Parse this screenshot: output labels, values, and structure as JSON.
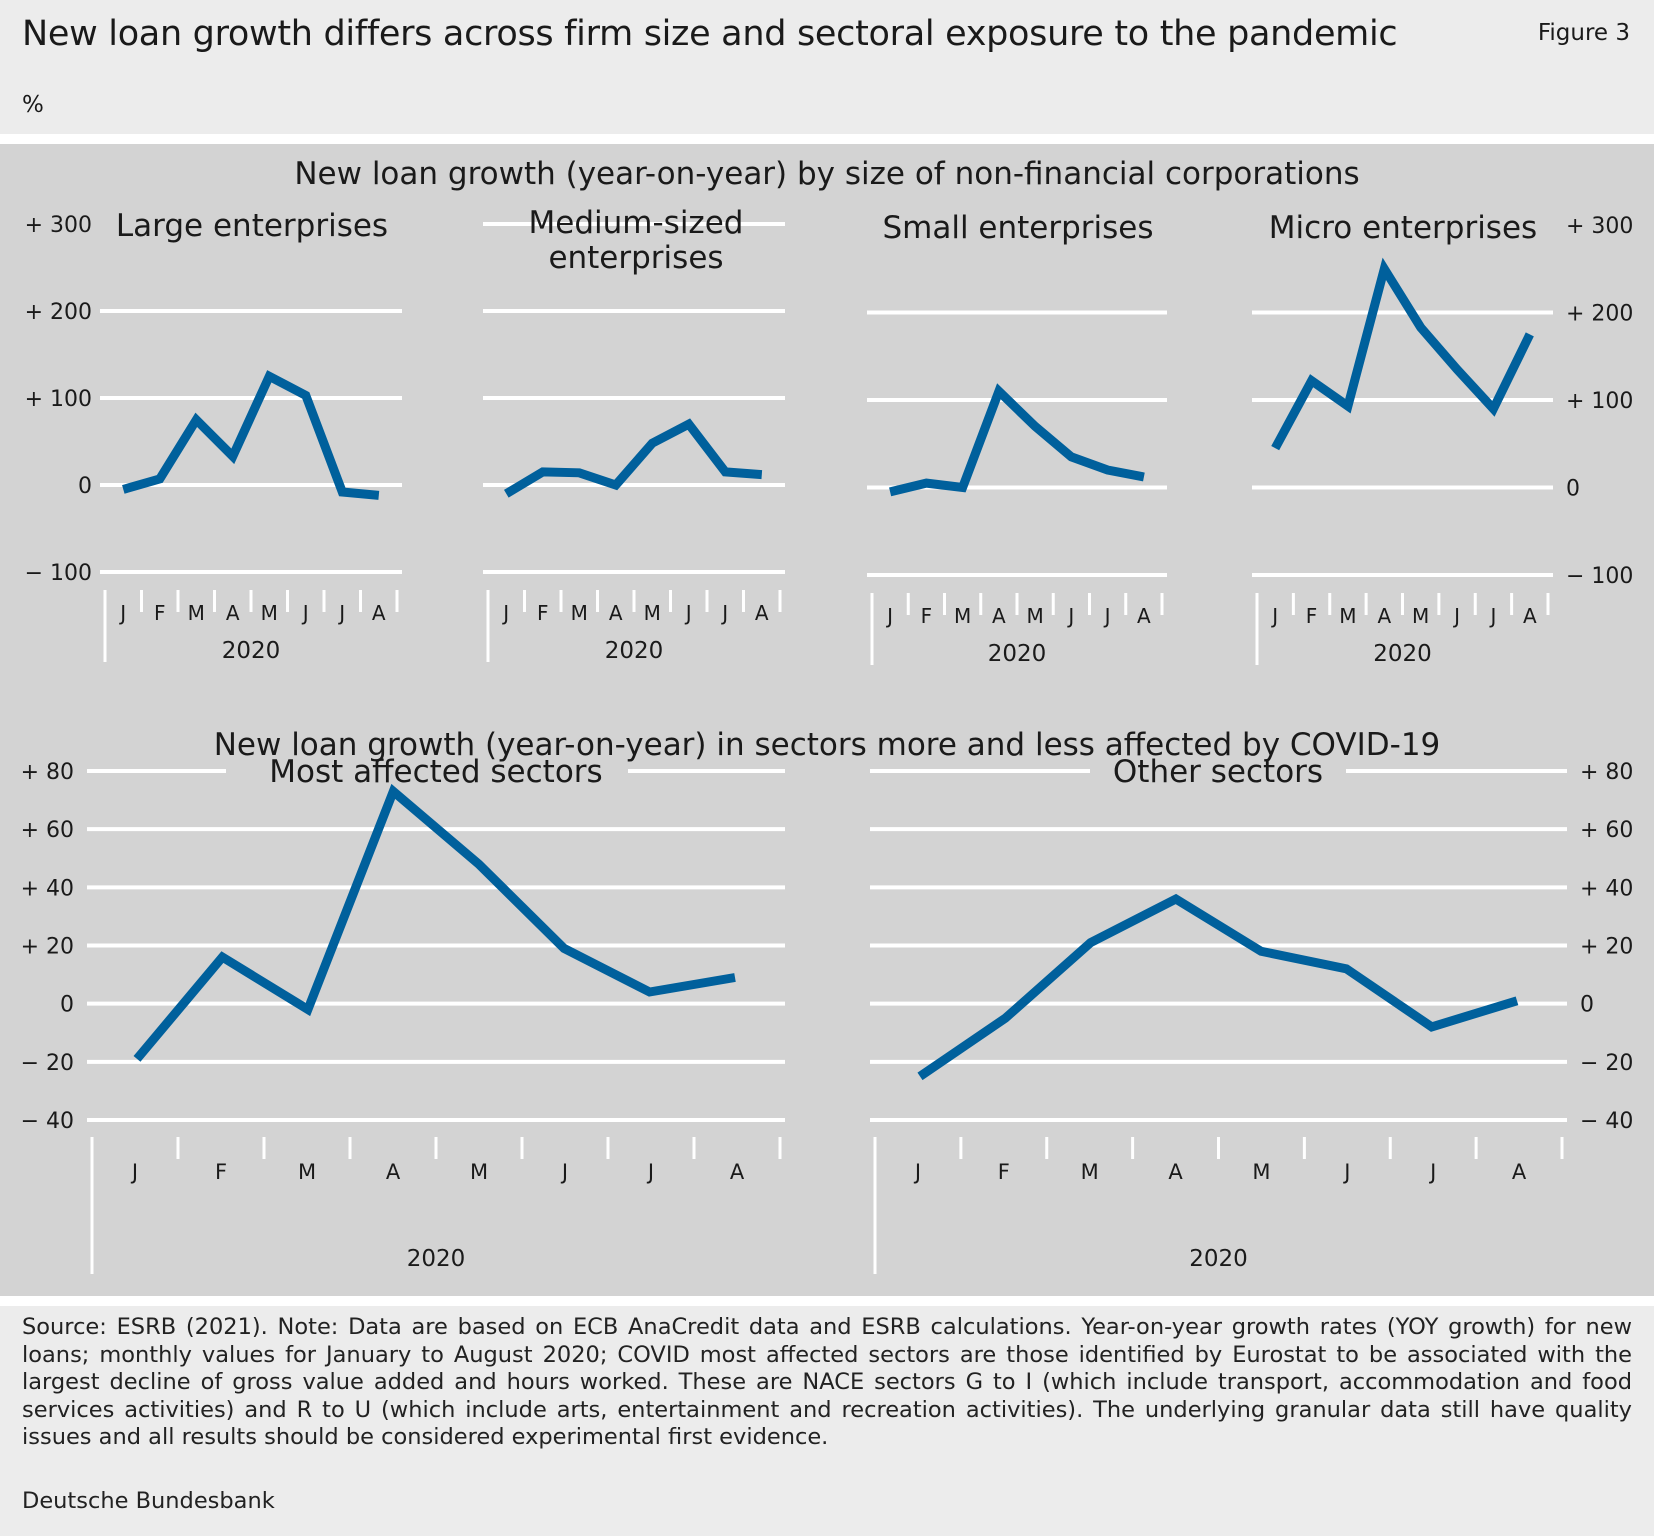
{
  "figure": {
    "title": "New loan growth differs across firm size and sectoral exposure to the pandemic",
    "number": "Figure 3",
    "unit": "%",
    "section_top_title": "New loan growth (year-on-year) by size of non-financial corporations",
    "section_bottom_title": "New loan growth (year-on-year) in sectors more and less affected by COVID-19",
    "note": "Source: ESRB (2021). Note: Data are based on ECB AnaCredit data and ESRB calculations. Year-on-year growth rates (YOY growth) for new loans; monthly values for January to August 2020; COVID most affected sectors are those identified by Eurostat to be associated with the largest decline of gross value added and hours worked. These are NACE sectors G to I (which include transport, accommodation and food services activities) and R to U (which include arts, entertainment and recreation activities). The underlying granular data still have quality issues and all results should be considered experimental first evidence.",
    "source_org": "Deutsche Bundesbank"
  },
  "colors": {
    "line": "#00609c",
    "panel_bg": "#d3d3d3",
    "grid": "#ffffff"
  },
  "chart_data": [
    {
      "type": "line",
      "title": "Large enterprises",
      "categories": [
        "J",
        "F",
        "M",
        "A",
        "M",
        "J",
        "J",
        "A"
      ],
      "year_label": "2020",
      "values": [
        -5,
        7,
        75,
        33,
        125,
        103,
        -8,
        -12
      ],
      "ylim": [
        -100,
        300
      ],
      "yticks": [
        -100,
        0,
        100,
        200,
        300
      ],
      "ytick_labels": [
        "− 100",
        "0",
        "+ 100",
        "+ 200",
        "+ 300"
      ],
      "grid": true
    },
    {
      "type": "line",
      "title": "Medium-sized enterprises",
      "categories": [
        "J",
        "F",
        "M",
        "A",
        "M",
        "J",
        "J",
        "A"
      ],
      "year_label": "2020",
      "values": [
        -10,
        15,
        14,
        0,
        48,
        70,
        15,
        12
      ],
      "ylim": [
        -100,
        300
      ],
      "grid": true
    },
    {
      "type": "line",
      "title": "Small enterprises",
      "categories": [
        "J",
        "F",
        "M",
        "A",
        "M",
        "J",
        "J",
        "A"
      ],
      "year_label": "2020",
      "values": [
        -5,
        5,
        0,
        110,
        70,
        35,
        20,
        12
      ],
      "ylim": [
        -100,
        300
      ],
      "grid": true
    },
    {
      "type": "line",
      "title": "Micro enterprises",
      "categories": [
        "J",
        "F",
        "M",
        "A",
        "M",
        "J",
        "J",
        "A"
      ],
      "year_label": "2020",
      "values": [
        45,
        122,
        93,
        250,
        183,
        135,
        90,
        175
      ],
      "ylim": [
        -100,
        300
      ],
      "yticks": [
        -100,
        0,
        100,
        200,
        300
      ],
      "ytick_labels": [
        "− 100",
        "0",
        "+ 100",
        "+ 200",
        "+ 300"
      ],
      "grid": true
    },
    {
      "type": "line",
      "title": "Most affected sectors",
      "categories": [
        "J",
        "F",
        "M",
        "A",
        "M",
        "J",
        "J",
        "A"
      ],
      "year_label": "2020",
      "values": [
        -19,
        16,
        -2,
        73,
        48,
        19,
        4,
        9
      ],
      "ylim": [
        -40,
        80
      ],
      "yticks": [
        -40,
        -20,
        0,
        20,
        40,
        60,
        80
      ],
      "ytick_labels": [
        "− 40",
        "− 20",
        "0",
        "+ 20",
        "+ 40",
        "+ 60",
        "+ 80"
      ],
      "grid": true
    },
    {
      "type": "line",
      "title": "Other sectors",
      "categories": [
        "J",
        "F",
        "M",
        "A",
        "M",
        "J",
        "J",
        "A"
      ],
      "year_label": "2020",
      "values": [
        -25,
        -5,
        21,
        36,
        18,
        12,
        -8,
        1
      ],
      "ylim": [
        -40,
        80
      ],
      "yticks": [
        -40,
        -20,
        0,
        20,
        40,
        60,
        80
      ],
      "ytick_labels": [
        "− 40",
        "− 20",
        "0",
        "+ 20",
        "+ 40",
        "+ 60",
        "+ 80"
      ],
      "grid": true
    }
  ]
}
